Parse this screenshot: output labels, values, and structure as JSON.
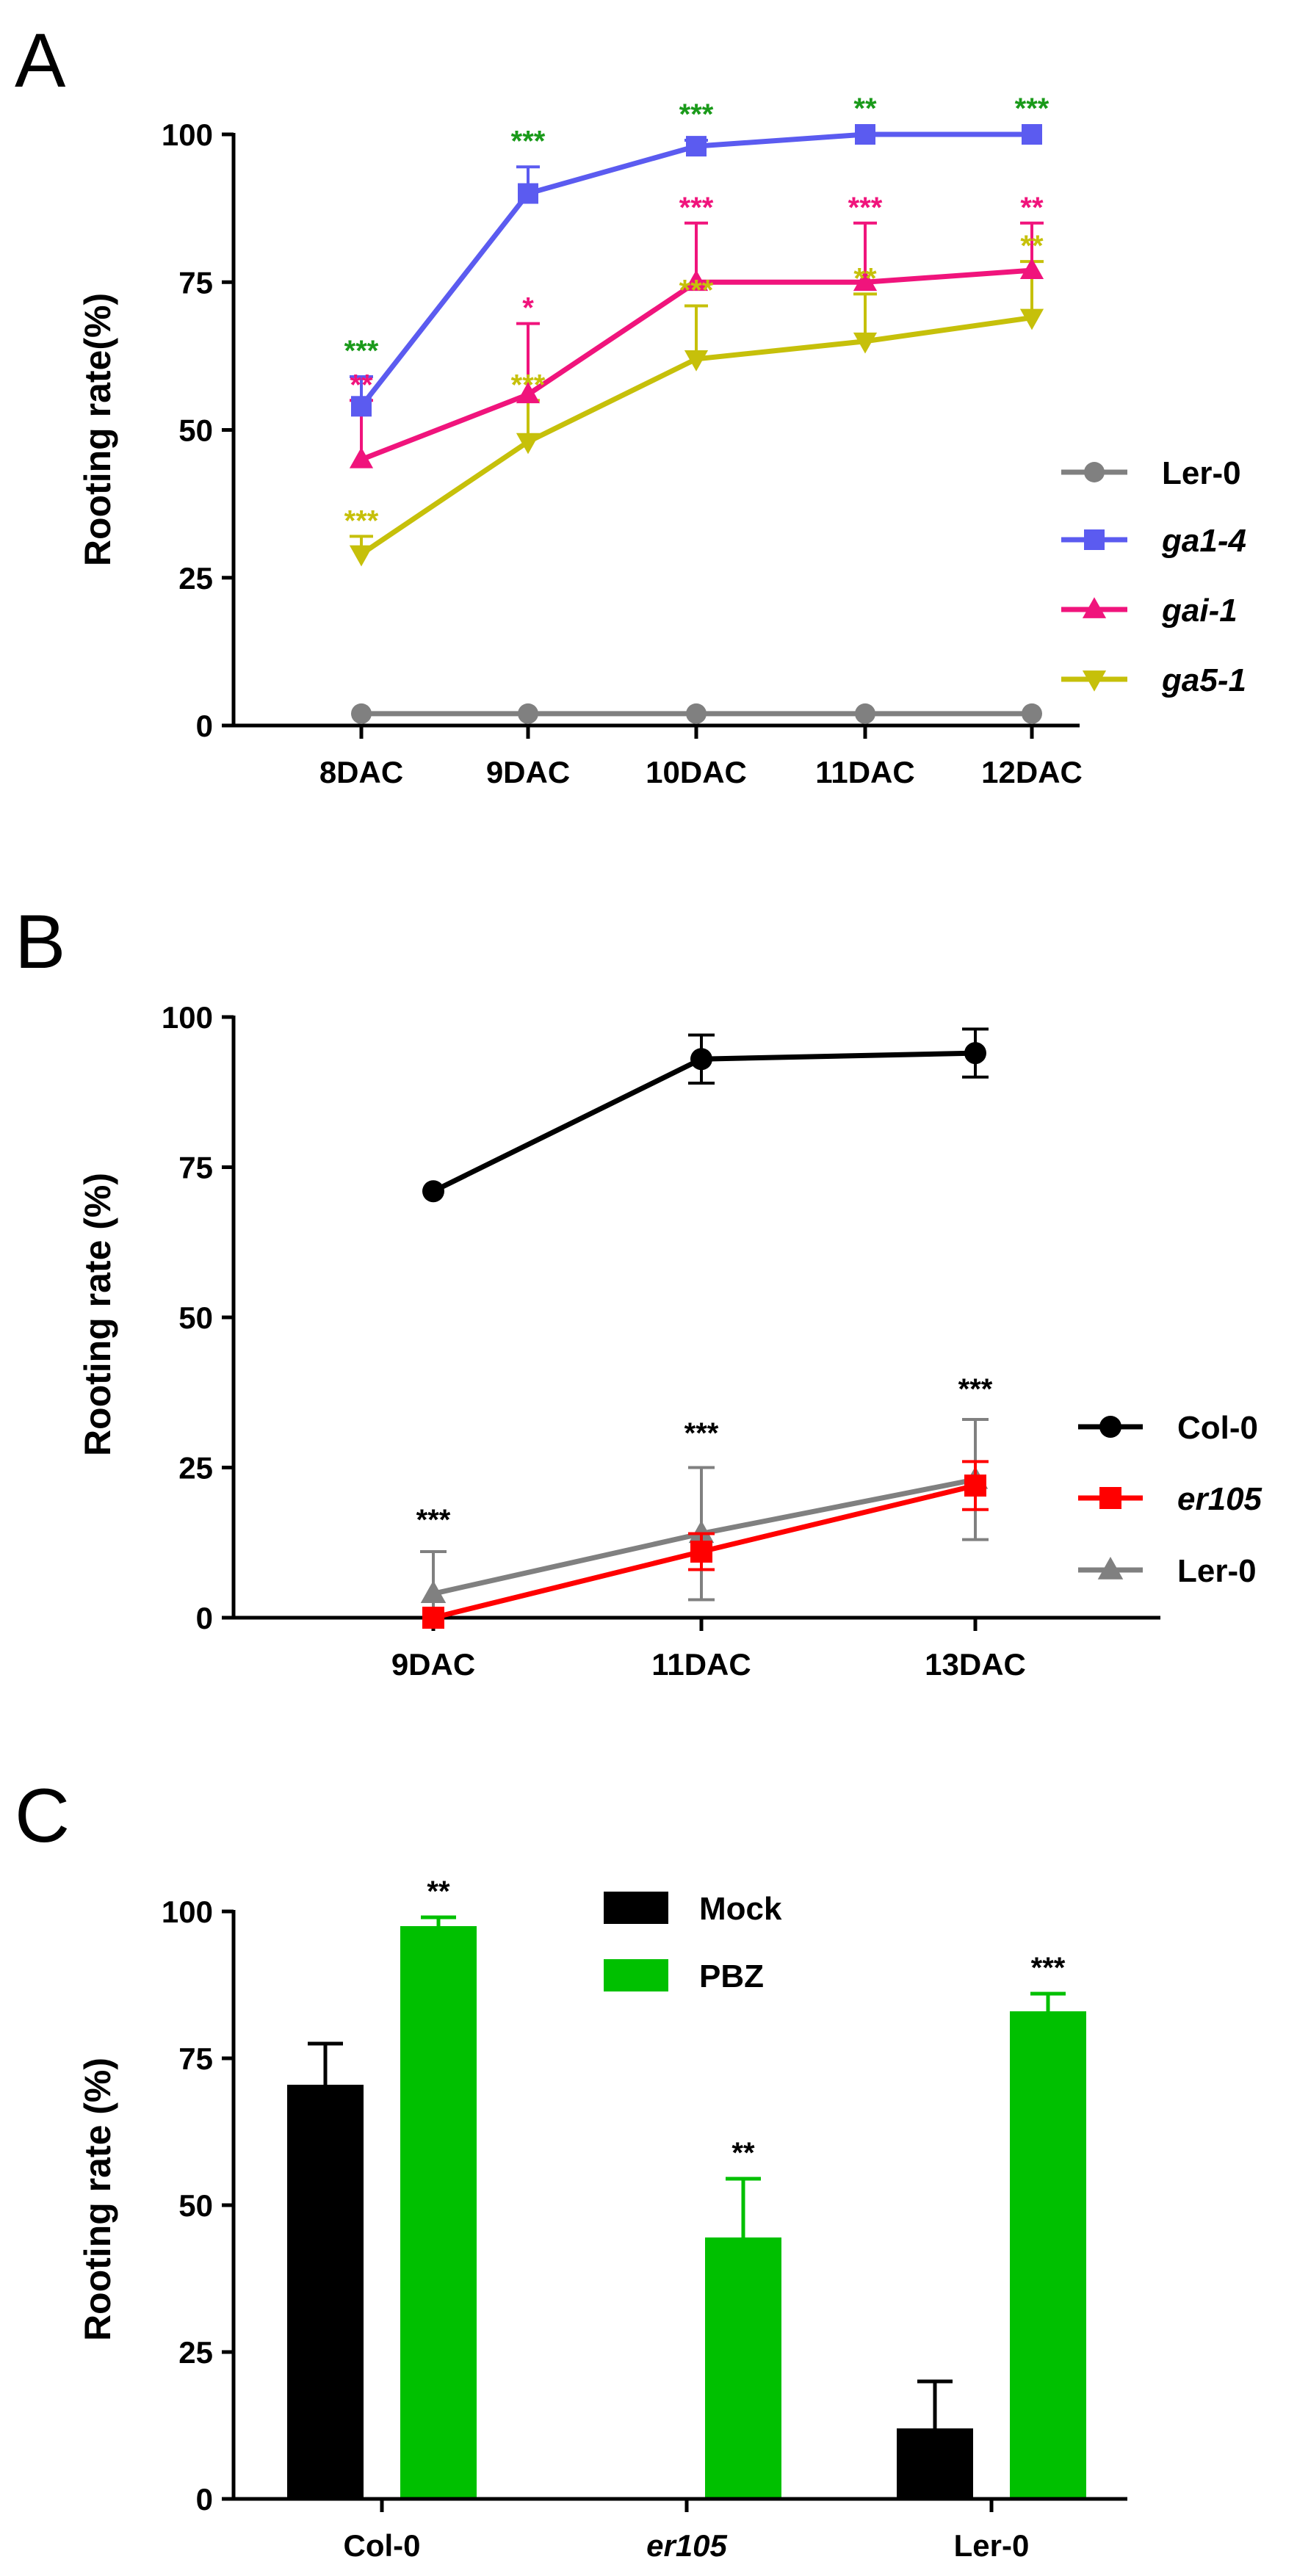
{
  "chart_data": [
    {
      "panel": "A",
      "type": "line",
      "ylabel": "Rooting rate(%)",
      "xlabel": "",
      "ylim": [
        0,
        100
      ],
      "yticks": [
        "0",
        "25",
        "50",
        "75",
        "100"
      ],
      "categories": [
        "8DAC",
        "9DAC",
        "10DAC",
        "11DAC",
        "12DAC"
      ],
      "legend_position": "right",
      "series": [
        {
          "name": "Ler-0",
          "italic": false,
          "color": "#808080",
          "marker": "circle",
          "values": [
            2,
            2,
            2,
            2,
            2
          ],
          "errors": [
            0,
            0,
            0,
            0,
            0
          ],
          "sig": [
            "",
            "",
            "",
            "",
            ""
          ]
        },
        {
          "name": "ga1-4",
          "italic": true,
          "color": "#5b5bf0",
          "marker": "square",
          "values": [
            54,
            90,
            98,
            100,
            100
          ],
          "errors": [
            5,
            4.5,
            1,
            0,
            0
          ],
          "sig": [
            "***",
            "***",
            "***",
            "**",
            "***"
          ],
          "sig_color": "#1a9a1a"
        },
        {
          "name": "gai-1",
          "italic": true,
          "color": "#f0147c",
          "marker": "triangle-up",
          "values": [
            45,
            56,
            75,
            75,
            77
          ],
          "errors": [
            10,
            12,
            10,
            10,
            8
          ],
          "sig": [
            "**",
            "*",
            "***",
            "***",
            "**"
          ],
          "sig_color": "#f0147c"
        },
        {
          "name": "ga5-1",
          "italic": true,
          "color": "#c6c00a",
          "marker": "triangle-down",
          "values": [
            29,
            48,
            62,
            65,
            69
          ],
          "errors": [
            3,
            7,
            9,
            8,
            9.5
          ],
          "sig": [
            "***",
            "***",
            "***",
            "**",
            "**"
          ],
          "sig_color": "#c6c00a"
        }
      ]
    },
    {
      "panel": "B",
      "type": "line",
      "ylabel": "Rooting rate (%)",
      "xlabel": "",
      "ylim": [
        0,
        100
      ],
      "yticks": [
        "0",
        "25",
        "50",
        "75",
        "100"
      ],
      "categories": [
        "9DAC",
        "11DAC",
        "13DAC"
      ],
      "legend_position": "right",
      "series": [
        {
          "name": "Col-0",
          "italic": false,
          "color": "#000000",
          "marker": "circle",
          "values": [
            71,
            93,
            94
          ],
          "errors": [
            0,
            4,
            4
          ]
        },
        {
          "name": "er105",
          "italic": true,
          "color": "#ff0000",
          "marker": "square",
          "values": [
            0,
            11,
            22
          ],
          "errors": [
            0,
            3,
            4
          ]
        },
        {
          "name": "Ler-0",
          "italic": false,
          "color": "#808080",
          "marker": "triangle-up",
          "values": [
            4,
            14,
            23
          ],
          "errors": [
            7,
            11,
            10
          ]
        }
      ],
      "sig": [
        "***",
        "***",
        "***"
      ],
      "sig_color": "#000000"
    },
    {
      "panel": "C",
      "type": "bar",
      "ylabel": "Rooting rate (%)",
      "xlabel": "",
      "ylim": [
        0,
        100
      ],
      "yticks": [
        "0",
        "25",
        "50",
        "75",
        "100"
      ],
      "categories": [
        {
          "label": "Col-0",
          "italic": false
        },
        {
          "label": "er105",
          "italic": true
        },
        {
          "label": "Ler-0",
          "italic": false
        }
      ],
      "legend_position": "top",
      "series": [
        {
          "name": "Mock",
          "color": "#000000",
          "values": [
            70.5,
            0,
            12
          ],
          "errors": [
            7,
            0,
            8
          ]
        },
        {
          "name": "PBZ",
          "color": "#00c000",
          "values": [
            97.5,
            44.5,
            83
          ],
          "errors": [
            1.5,
            10,
            3
          ]
        }
      ],
      "sig": [
        "**",
        "**",
        "***"
      ],
      "sig_color": "#000000"
    }
  ]
}
